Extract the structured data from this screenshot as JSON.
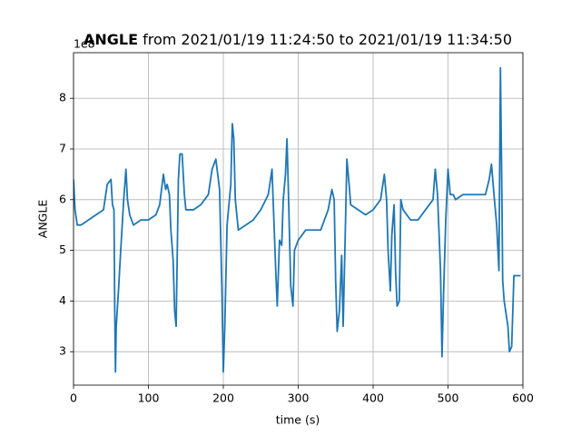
{
  "chart_data": {
    "type": "line",
    "title_parts": [
      "ANGLE",
      "from 2021/01/19 11:24:50 to 2021/01/19 11:34:50"
    ],
    "x_label": "time (s)",
    "y_label": "ANGLE",
    "y_offset_label": "1e8",
    "xlim": [
      0,
      600
    ],
    "xticks": [
      0,
      100,
      200,
      300,
      400,
      500,
      600
    ],
    "ylim": [
      2.34,
      8.9
    ],
    "yticks": [
      3,
      4,
      5,
      6,
      7,
      8
    ],
    "grid": true,
    "series": [
      {
        "name": "ANGLE",
        "color": "#1f77b4",
        "x": [
          0,
          2,
          5,
          10,
          20,
          30,
          40,
          45,
          50,
          52,
          54,
          55,
          56,
          57,
          60,
          63,
          67,
          70,
          72,
          75,
          80,
          90,
          100,
          110,
          115,
          120,
          123,
          125,
          128,
          130,
          133,
          135,
          137,
          140,
          142,
          145,
          148,
          150,
          160,
          170,
          180,
          185,
          190,
          195,
          198,
          200,
          202,
          205,
          210,
          212,
          214,
          216,
          220,
          230,
          240,
          250,
          260,
          265,
          270,
          272,
          275,
          278,
          280,
          283,
          285,
          287,
          290,
          293,
          295,
          300,
          310,
          320,
          330,
          340,
          345,
          348,
          350,
          352,
          355,
          358,
          360,
          362,
          365,
          368,
          370,
          380,
          390,
          400,
          410,
          415,
          418,
          420,
          423,
          425,
          428,
          430,
          432,
          435,
          437,
          440,
          450,
          460,
          470,
          480,
          483,
          486,
          490,
          492,
          494,
          497,
          500,
          503,
          507,
          510,
          520,
          530,
          540,
          550,
          555,
          558,
          562,
          565,
          568,
          570,
          572,
          573,
          575,
          580,
          582,
          585,
          588,
          597
        ],
        "values": [
          6.4,
          5.8,
          5.5,
          5.5,
          5.6,
          5.7,
          5.8,
          6.3,
          6.4,
          5.9,
          5.8,
          3.9,
          2.6,
          3.5,
          4.2,
          5.0,
          6.0,
          6.6,
          6.0,
          5.7,
          5.5,
          5.6,
          5.6,
          5.7,
          5.9,
          6.5,
          6.2,
          6.3,
          6.1,
          5.4,
          4.8,
          3.8,
          3.5,
          6.4,
          6.9,
          6.9,
          6.1,
          5.8,
          5.8,
          5.9,
          6.1,
          6.6,
          6.8,
          6.2,
          4.3,
          2.6,
          3.5,
          5.5,
          6.3,
          7.5,
          7.2,
          6.0,
          5.4,
          5.5,
          5.6,
          5.8,
          6.1,
          6.6,
          4.6,
          3.9,
          5.2,
          5.1,
          6.0,
          6.5,
          7.2,
          6.1,
          4.3,
          3.9,
          5.0,
          5.2,
          5.4,
          5.4,
          5.4,
          5.8,
          6.2,
          6.0,
          4.4,
          3.4,
          3.8,
          4.9,
          3.5,
          4.8,
          6.8,
          6.3,
          5.9,
          5.8,
          5.7,
          5.8,
          6.0,
          6.5,
          6.0,
          5.0,
          4.2,
          5.3,
          5.9,
          4.6,
          3.9,
          4.0,
          6.0,
          5.8,
          5.6,
          5.6,
          5.8,
          6.0,
          6.6,
          6.1,
          4.6,
          2.9,
          4.1,
          5.6,
          6.6,
          6.1,
          6.1,
          6.0,
          6.1,
          6.1,
          6.1,
          6.1,
          6.4,
          6.7,
          6.0,
          5.5,
          4.6,
          8.6,
          6.0,
          4.4,
          4.0,
          3.5,
          3.0,
          3.1,
          4.5,
          4.5
        ]
      }
    ]
  }
}
